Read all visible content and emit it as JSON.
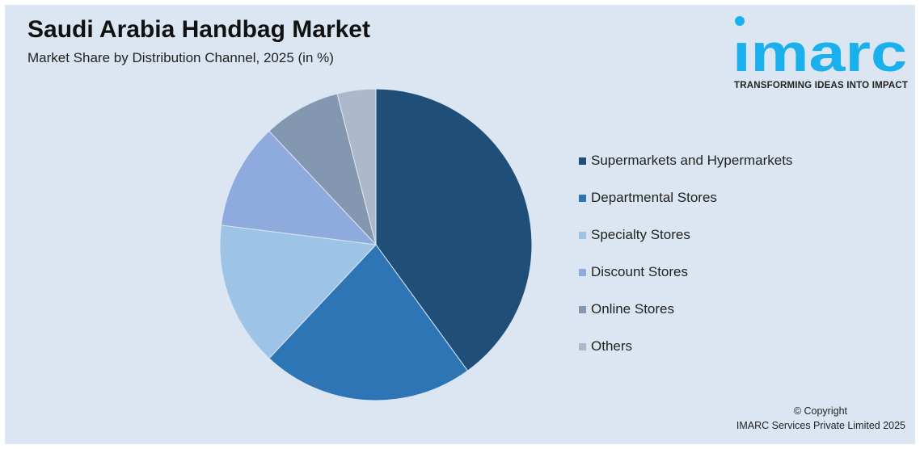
{
  "header": {
    "title": "Saudi Arabia Handbag Market",
    "subtitle": "Market Share by Distribution Channel, 2025 (in %)"
  },
  "logo": {
    "text": "imarc",
    "tagline": "TRANSFORMING IDEAS INTO IMPACT",
    "color": "#1ab0ee"
  },
  "chart_data": {
    "type": "pie",
    "title": "Saudi Arabia Handbag Market",
    "subtitle": "Market Share by Distribution Channel, 2025 (in %)",
    "categories": [
      "Supermarkets and Hypermarkets",
      "Departmental Stores",
      "Specialty Stores",
      "Discount Stores",
      "Online Stores",
      "Others"
    ],
    "values": [
      40,
      22,
      15,
      11,
      8,
      4
    ],
    "colors": [
      "#1f4e79",
      "#2e75b6",
      "#9dc3e6",
      "#8faadc",
      "#8497b0",
      "#adb9ca"
    ],
    "start": "12 o'clock, clockwise",
    "legend": "right"
  },
  "footer": {
    "copyright": "© Copyright",
    "company": "IMARC Services Private Limited 2025"
  }
}
